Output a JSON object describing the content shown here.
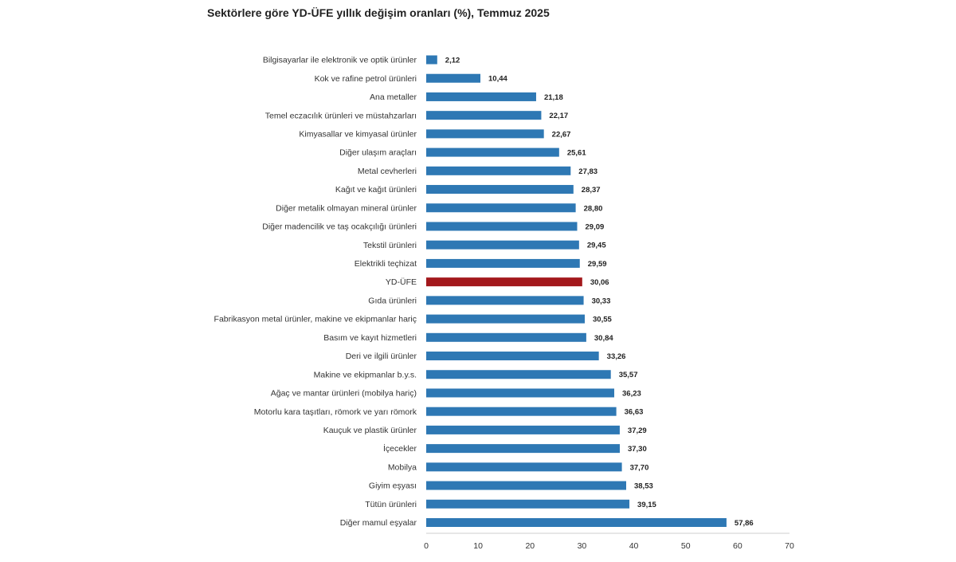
{
  "chart_data": {
    "type": "bar",
    "orientation": "horizontal",
    "title": "Sektörlere göre YD-ÜFE yıllık değişim oranları (%), Temmuz 2025",
    "xlim": [
      0,
      70
    ],
    "xticks": [
      0,
      10,
      20,
      30,
      40,
      50,
      60,
      70
    ],
    "grid": false,
    "colors": {
      "default": "#2e78b4",
      "highlight": "#a3181c",
      "axis": "#cfcfcf"
    },
    "highlight": "YD-ÜFE",
    "categories": [
      "Bilgisayarlar ile elektronik ve optik ürünler",
      "Kok ve rafine petrol ürünleri",
      "Ana metaller",
      "Temel eczacılık ürünleri ve müstahzarları",
      "Kimyasallar ve kimyasal ürünler",
      "Diğer ulaşım araçları",
      "Metal cevherleri",
      "Kağıt ve kağıt ürünleri",
      "Diğer metalik olmayan mineral ürünler",
      "Diğer madencilik ve taş ocakçılığı ürünleri",
      "Tekstil ürünleri",
      "Elektrikli teçhizat",
      "YD-ÜFE",
      "Gıda ürünleri",
      "Fabrikasyon metal ürünler, makine ve ekipmanlar hariç",
      "Basım ve kayıt hizmetleri",
      "Deri ve ilgili ürünler",
      "Makine ve ekipmanlar b.y.s.",
      "Ağaç ve mantar ürünleri (mobilya hariç)",
      "Motorlu kara taşıtları, römork ve yarı römork",
      "Kauçuk ve plastik ürünler",
      "İçecekler",
      "Mobilya",
      "Giyim eşyası",
      "Tütün ürünleri",
      "Diğer mamul eşyalar"
    ],
    "values": [
      2.12,
      10.44,
      21.18,
      22.17,
      22.67,
      25.61,
      27.83,
      28.37,
      28.8,
      29.09,
      29.45,
      29.59,
      30.06,
      30.33,
      30.55,
      30.84,
      33.26,
      35.57,
      36.23,
      36.63,
      37.29,
      37.3,
      37.7,
      38.53,
      39.15,
      57.86
    ],
    "value_labels": [
      "2,12",
      "10,44",
      "21,18",
      "22,17",
      "22,67",
      "25,61",
      "27,83",
      "28,37",
      "28,80",
      "29,09",
      "29,45",
      "29,59",
      "30,06",
      "30,33",
      "30,55",
      "30,84",
      "33,26",
      "35,57",
      "36,23",
      "36,63",
      "37,29",
      "37,30",
      "37,70",
      "38,53",
      "39,15",
      "57,86"
    ]
  }
}
